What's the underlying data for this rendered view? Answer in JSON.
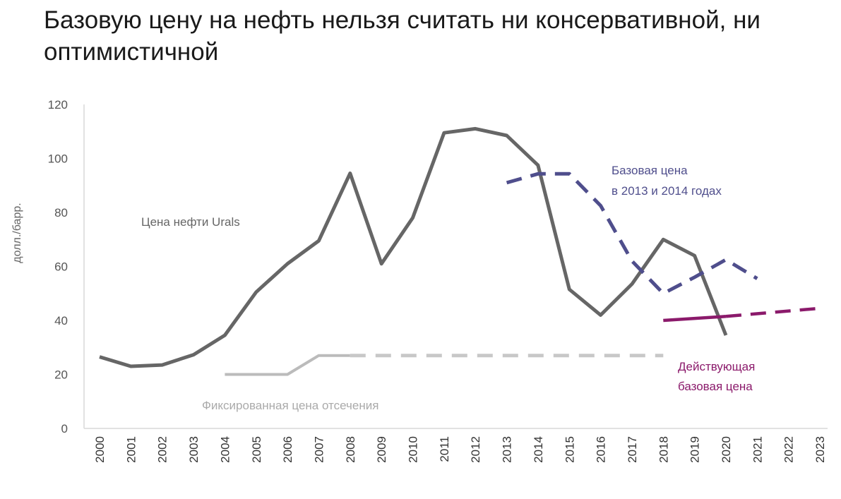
{
  "title": "Базовую цену на нефть нельзя считать ни консервативной, ни оптимистичной",
  "colors": {
    "urals": "#666666",
    "cutoff_fixed": "#bbbbbb",
    "base_2013_2014": "#4f4e8c",
    "base_current": "#8b1a6b",
    "axis": "#d9d9d9"
  },
  "chart_data": {
    "type": "line",
    "title": "Базовую цену на нефть нельзя считать ни консервативной, ни оптимистичной",
    "xlabel": "",
    "ylabel": "долл./барр.",
    "ylim": [
      0,
      120
    ],
    "yticks": [
      0,
      20,
      40,
      60,
      80,
      100,
      120
    ],
    "categories": [
      "2000",
      "2001",
      "2002",
      "2003",
      "2004",
      "2005",
      "2006",
      "2007",
      "2008",
      "2009",
      "2010",
      "2011",
      "2012",
      "2013",
      "2014",
      "2015",
      "2016",
      "2017",
      "2018",
      "2019",
      "2020",
      "2021",
      "2022",
      "2023"
    ],
    "grid": false,
    "series": [
      {
        "name": "Цена нефти Urals",
        "style": "solid",
        "points": [
          {
            "x": "2000",
            "y": 26.5
          },
          {
            "x": "2001",
            "y": 23
          },
          {
            "x": "2002",
            "y": 23.5
          },
          {
            "x": "2003",
            "y": 27.3
          },
          {
            "x": "2004",
            "y": 34.5
          },
          {
            "x": "2005",
            "y": 50.5
          },
          {
            "x": "2006",
            "y": 61
          },
          {
            "x": "2007",
            "y": 69.5
          },
          {
            "x": "2008",
            "y": 94.5
          },
          {
            "x": "2009",
            "y": 61
          },
          {
            "x": "2010",
            "y": 78
          },
          {
            "x": "2011",
            "y": 109.5
          },
          {
            "x": "2012",
            "y": 111
          },
          {
            "x": "2013",
            "y": 108.5
          },
          {
            "x": "2014",
            "y": 97.5
          },
          {
            "x": "2015",
            "y": 51.5
          },
          {
            "x": "2016",
            "y": 42
          },
          {
            "x": "2017",
            "y": 53.5
          },
          {
            "x": "2018",
            "y": 70
          },
          {
            "x": "2019",
            "y": 64
          },
          {
            "x": "2020",
            "y": 34.5
          }
        ]
      },
      {
        "name": "Фиксированная цена отсечения",
        "style": "solid",
        "points": [
          {
            "x": "2004",
            "y": 20
          },
          {
            "x": "2006",
            "y": 20
          },
          {
            "x": "2007",
            "y": 27
          },
          {
            "x": "2008",
            "y": 27
          }
        ]
      },
      {
        "name": "Фиксированная цена отсечения",
        "style": "dashed",
        "points": [
          {
            "x": "2008",
            "y": 27
          },
          {
            "x": "2018",
            "y": 27
          }
        ]
      },
      {
        "name": "Базовая цена в 2013 и 2014 годах",
        "style": "dashed",
        "points": [
          {
            "x": "2013",
            "y": 91
          },
          {
            "x": "2014",
            "y": 94.3
          },
          {
            "x": "2015",
            "y": 94.3
          },
          {
            "x": "2016",
            "y": 82.5
          },
          {
            "x": "2017",
            "y": 62
          },
          {
            "x": "2018",
            "y": 50
          },
          {
            "x": "2019",
            "y": 56
          },
          {
            "x": "2020",
            "y": 62.5
          },
          {
            "x": "2021",
            "y": 55.5
          }
        ]
      },
      {
        "name": "Действующая базовая цена",
        "style": "solid",
        "points": [
          {
            "x": "2018",
            "y": 40
          },
          {
            "x": "2020",
            "y": 41.5
          }
        ]
      },
      {
        "name": "Действующая базовая цена",
        "style": "dashed",
        "points": [
          {
            "x": "2020",
            "y": 41.5
          },
          {
            "x": "2023",
            "y": 44.5
          }
        ]
      }
    ],
    "annotations": [
      {
        "lines": [
          "Цена нефти Urals"
        ],
        "series": "Цена нефти Urals"
      },
      {
        "lines": [
          "Фиксированная цена отсечения"
        ],
        "series": "Фиксированная цена отсечения"
      },
      {
        "lines": [
          "Базовая цена",
          "в 2013 и 2014 годах"
        ],
        "series": "Базовая цена в 2013 и 2014 годах"
      },
      {
        "lines": [
          "Действующая",
          "базовая цена"
        ],
        "series": "Действующая базовая цена"
      }
    ]
  }
}
